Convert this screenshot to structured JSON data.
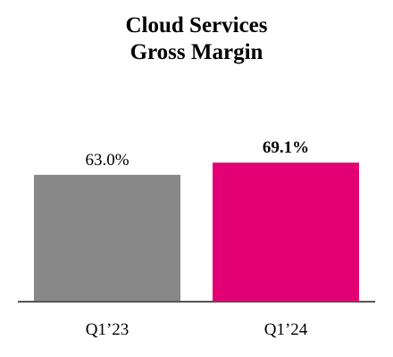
{
  "chart_data": {
    "type": "bar",
    "title_line1": "Cloud Services",
    "title_line2": "Gross Margin",
    "categories": [
      "Q1’23",
      "Q1’24"
    ],
    "values": [
      63.0,
      69.1
    ],
    "value_labels": [
      "63.0%",
      "69.1%"
    ],
    "bar_colors": [
      "#888888",
      "#E20074"
    ],
    "highlighted_label": "69.1%",
    "xlabel": "",
    "ylabel": "",
    "ylim": [
      0,
      100
    ],
    "grid": false
  }
}
